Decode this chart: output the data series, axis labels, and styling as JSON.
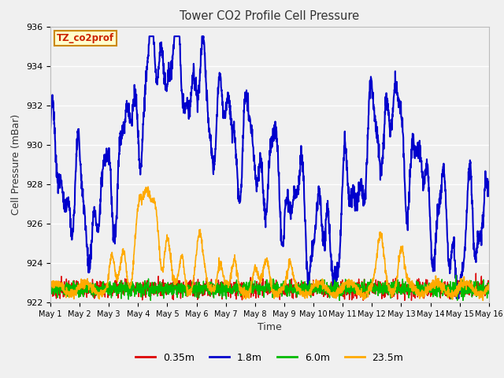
{
  "title": "Tower CO2 Profile Cell Pressure",
  "xlabel": "Time",
  "ylabel": "Cell Pressure (mBar)",
  "ylim": [
    922,
    936
  ],
  "plot_bg_color": "#f0f0f0",
  "fig_bg_color": "#f0f0f0",
  "label_box_text": "TZ_co2prof",
  "label_box_facecolor": "#ffffcc",
  "label_box_edgecolor": "#cc8800",
  "label_box_textcolor": "#cc2200",
  "grid_color": "#ffffff",
  "series": {
    "0.35m": {
      "color": "#dd0000",
      "lw": 1.0
    },
    "1.8m": {
      "color": "#0000cc",
      "lw": 1.5
    },
    "6.0m": {
      "color": "#00bb00",
      "lw": 1.0
    },
    "23.5m": {
      "color": "#ffaa00",
      "lw": 1.2
    }
  },
  "xtick_labels": [
    "May 1",
    "May 2",
    "May 3",
    "May 4",
    "May 5",
    "May 6",
    "May 7",
    "May 8",
    "May 9",
    "May 10",
    "May 11",
    "May 12",
    "May 13",
    "May 14",
    "May 15",
    "May 16"
  ],
  "ytick_values": [
    922,
    924,
    926,
    928,
    930,
    932,
    934,
    936
  ],
  "n_points": 2000
}
